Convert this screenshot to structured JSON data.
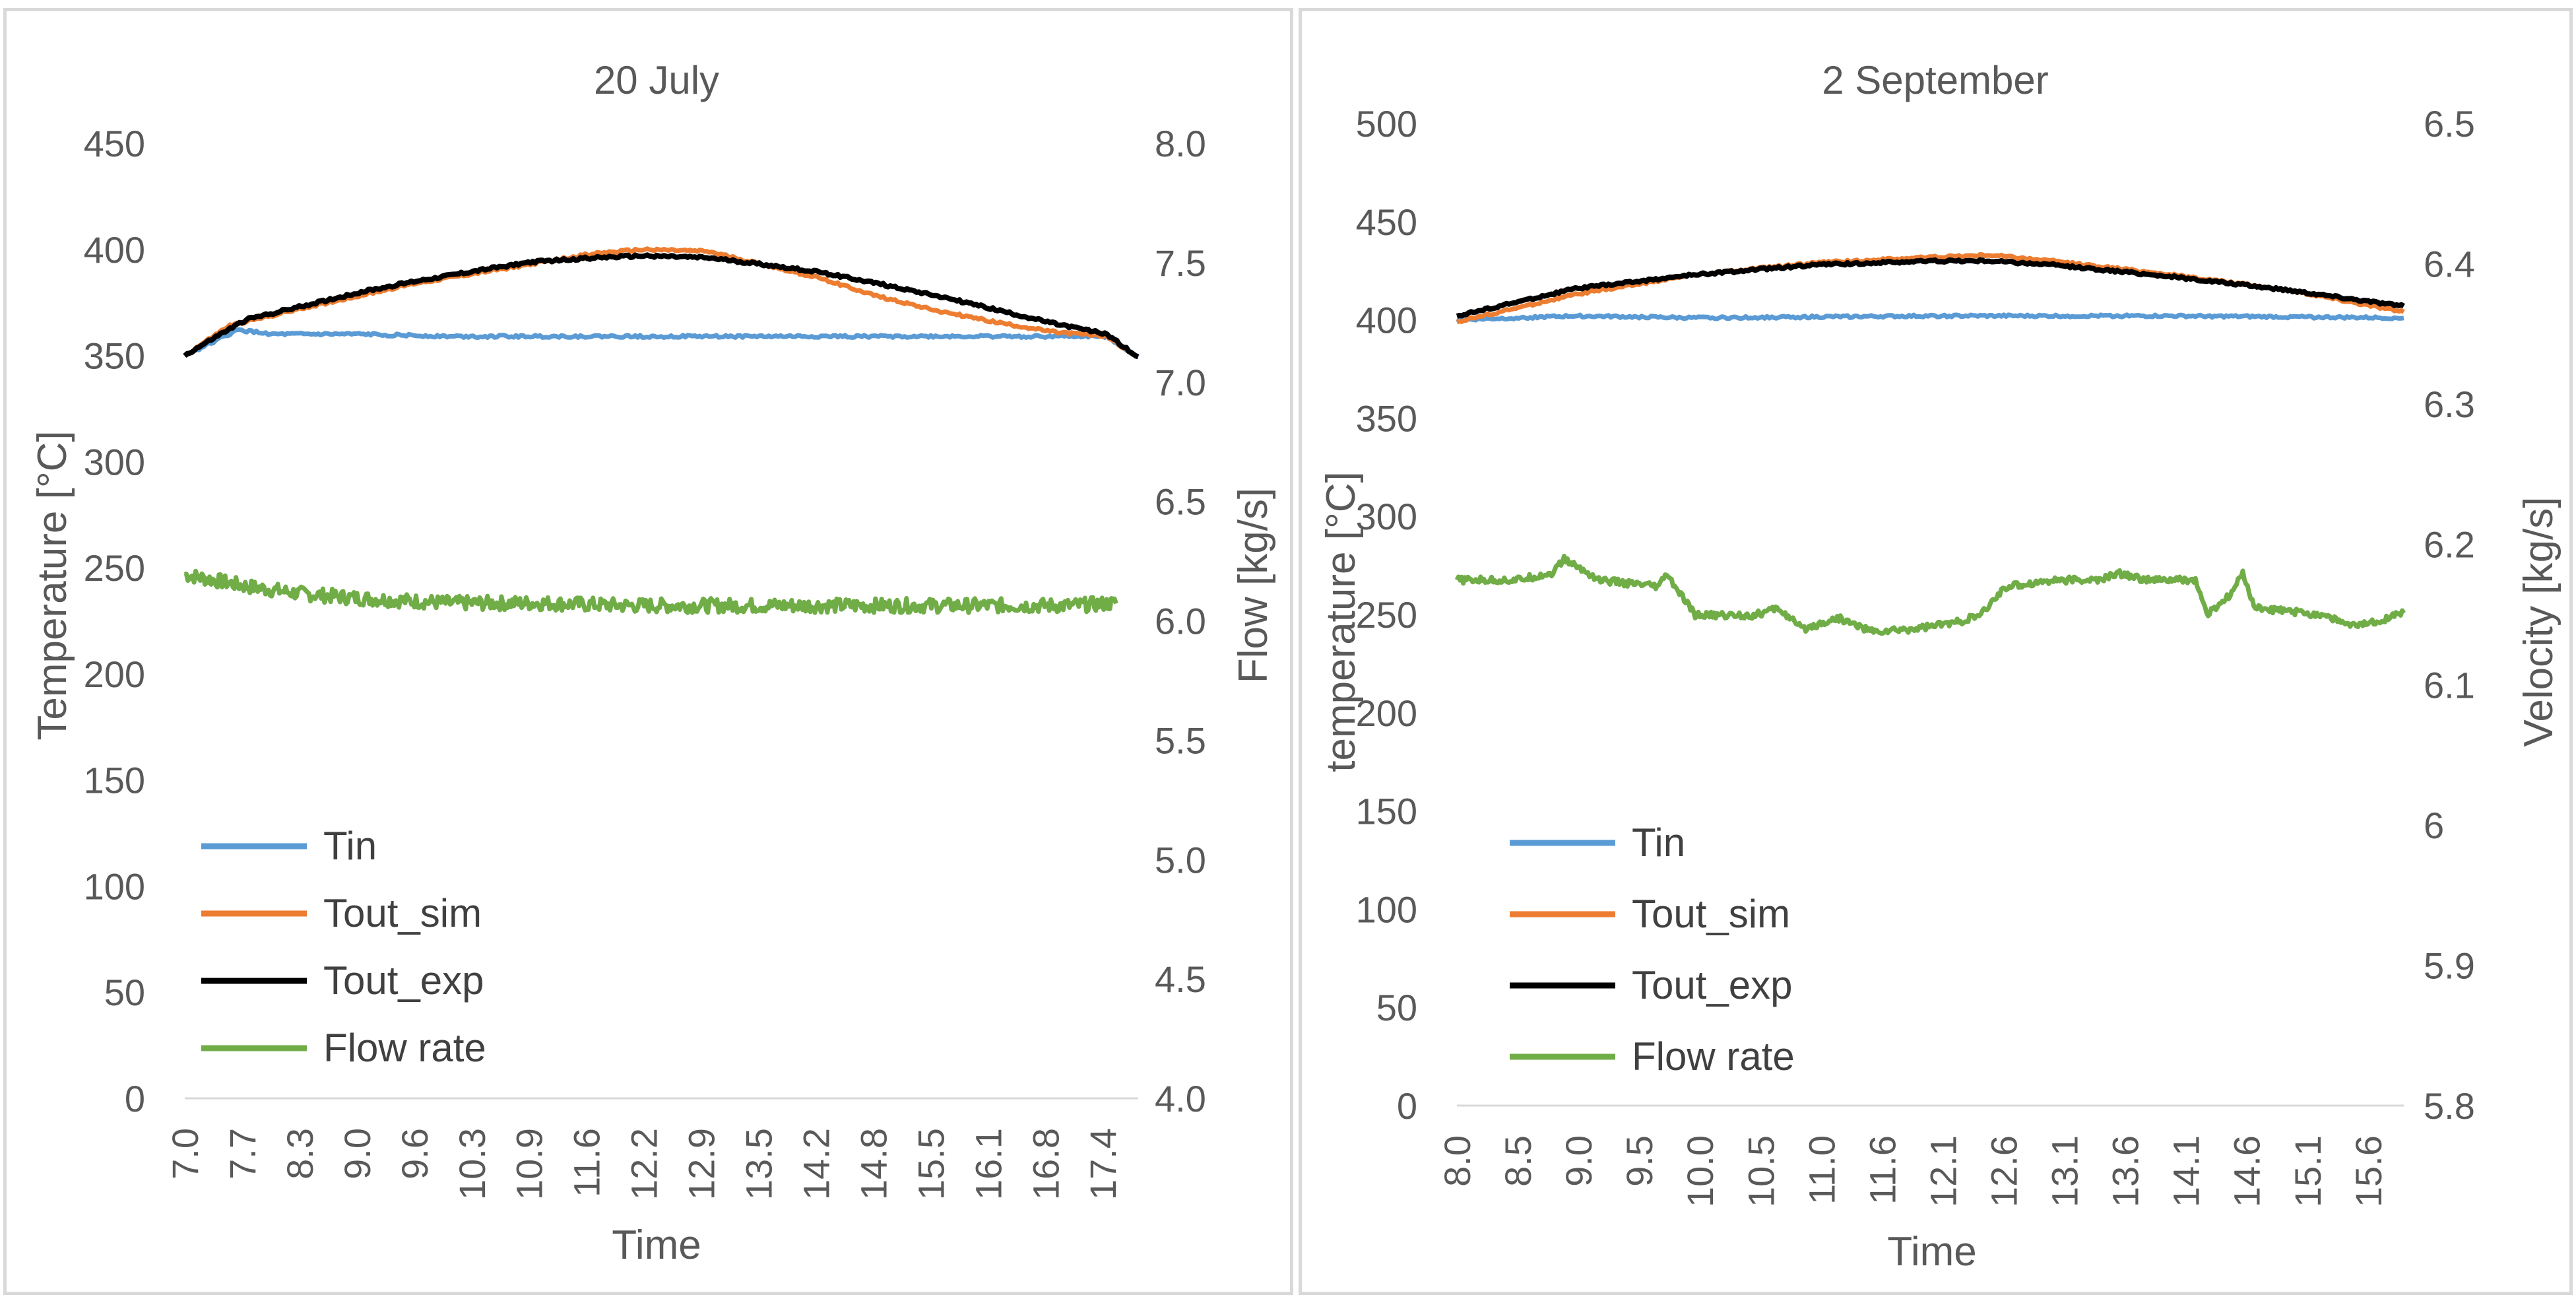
{
  "chart_data": [
    {
      "type": "line",
      "title": "20 July",
      "xlabel": "Time",
      "ylabel": "Temperature [°C]",
      "y2label": "Flow [kg/s]",
      "ylim": [
        0,
        450
      ],
      "y2lim": [
        4.0,
        8.0
      ],
      "yticks": [
        "0",
        "50",
        "100",
        "150",
        "200",
        "250",
        "300",
        "350",
        "400",
        "450"
      ],
      "y2ticks": [
        "4.0",
        "4.5",
        "5.0",
        "5.5",
        "6.0",
        "6.5",
        "7.0",
        "7.5",
        "8.0"
      ],
      "xlim": [
        7.0,
        17.75
      ],
      "xticks": [
        "7.0",
        "7.7",
        "8.3",
        "9.0",
        "9.6",
        "10.3",
        "10.9",
        "11.6",
        "12.2",
        "12.9",
        "13.5",
        "14.2",
        "14.8",
        "15.5",
        "16.1",
        "16.8",
        "17.4"
      ],
      "legend_position": "bottom-left",
      "series": [
        {
          "name": "Tin",
          "color": "#5b9bd5",
          "axis": "left",
          "x": [
            7.0,
            7.6,
            8.0,
            9.0,
            10.0,
            12.0,
            14.0,
            16.0,
            17.4,
            17.75
          ],
          "values": [
            350,
            362,
            360,
            360,
            359,
            359,
            359,
            359,
            359,
            349
          ]
        },
        {
          "name": "Tout_sim",
          "color": "#ed7d31",
          "axis": "left",
          "x": [
            7.0,
            7.5,
            8.3,
            9.6,
            10.9,
            11.6,
            12.2,
            12.9,
            13.5,
            14.2,
            14.8,
            15.5,
            16.1,
            16.8,
            17.4,
            17.75
          ],
          "values": [
            350,
            364,
            372,
            384,
            393,
            398,
            400,
            399,
            393,
            386,
            378,
            371,
            366,
            361,
            359,
            349
          ]
        },
        {
          "name": "Tout_exp",
          "color": "#000000",
          "axis": "left",
          "x": [
            7.0,
            7.4,
            7.7,
            8.3,
            9.0,
            9.6,
            10.3,
            10.9,
            11.6,
            12.2,
            12.9,
            13.5,
            14.2,
            14.8,
            15.5,
            16.1,
            16.8,
            17.4,
            17.75
          ],
          "values": [
            350,
            360,
            367,
            373,
            380,
            385,
            390,
            394,
            396,
            397,
            396,
            393,
            389,
            384,
            378,
            372,
            365,
            360,
            349
          ]
        },
        {
          "name": "Flow rate",
          "color": "#70ad47",
          "axis": "right",
          "x": [
            7.0,
            7.7,
            8.3,
            9.0,
            10.0,
            11.0,
            12.0,
            13.0,
            14.0,
            15.0,
            16.0,
            17.0,
            17.5
          ],
          "values": [
            6.2,
            6.15,
            6.12,
            6.1,
            6.08,
            6.08,
            6.07,
            6.07,
            6.07,
            6.07,
            6.07,
            6.07,
            6.08
          ],
          "noise": 0.06
        }
      ]
    },
    {
      "type": "line",
      "title": "2 September",
      "xlabel": "Time",
      "ylabel": "temperature [°C]",
      "y2label": "Velocity [kg/s]",
      "ylim": [
        0,
        500
      ],
      "y2lim": [
        5.8,
        6.5
      ],
      "yticks": [
        "0",
        "50",
        "100",
        "150",
        "200",
        "250",
        "300",
        "350",
        "400",
        "450",
        "500"
      ],
      "y2ticks": [
        "5.8",
        "5.9",
        "6",
        "6.1",
        "6.2",
        "6.3",
        "6.4",
        "6.5"
      ],
      "xlim": [
        8.0,
        15.95
      ],
      "xticks": [
        "8.0",
        "8.5",
        "9.0",
        "9.5",
        "10.0",
        "10.5",
        "11.0",
        "11.6",
        "12.1",
        "12.6",
        "13.1",
        "13.6",
        "14.1",
        "14.6",
        "15.1",
        "15.6"
      ],
      "legend_position": "bottom-left",
      "series": [
        {
          "name": "Tin",
          "color": "#5b9bd5",
          "axis": "left",
          "x": [
            8.0,
            9.0,
            10.0,
            12.0,
            14.0,
            15.95
          ],
          "values": [
            400,
            402,
            401,
            402,
            402,
            401
          ]
        },
        {
          "name": "Tout_sim",
          "color": "#ed7d31",
          "axis": "left",
          "x": [
            8.0,
            9.0,
            10.0,
            11.0,
            12.0,
            12.5,
            13.0,
            14.0,
            15.0,
            15.95
          ],
          "values": [
            399,
            413,
            423,
            429,
            432,
            433,
            430,
            423,
            415,
            404
          ]
        },
        {
          "name": "Tout_exp",
          "color": "#000000",
          "axis": "left",
          "x": [
            8.0,
            9.0,
            10.0,
            11.0,
            12.0,
            12.5,
            13.0,
            14.0,
            15.0,
            15.95
          ],
          "values": [
            402,
            416,
            423,
            428,
            430,
            430,
            428,
            422,
            415,
            407
          ]
        },
        {
          "name": "Flow rate",
          "color": "#70ad47",
          "axis": "right",
          "x": [
            8.0,
            8.5,
            8.8,
            8.9,
            9.2,
            9.7,
            9.75,
            10.0,
            10.1,
            10.5,
            10.7,
            10.9,
            11.2,
            11.5,
            11.8,
            12.2,
            12.4,
            12.6,
            13.0,
            13.4,
            13.55,
            13.8,
            14.2,
            14.3,
            14.5,
            14.6,
            14.7,
            15.3,
            15.5,
            15.7,
            15.95
          ],
          "values": [
            6.175,
            6.175,
            6.18,
            6.19,
            6.175,
            6.17,
            6.18,
            6.15,
            6.15,
            6.15,
            6.155,
            6.14,
            6.148,
            6.138,
            6.14,
            6.145,
            6.15,
            6.17,
            6.175,
            6.175,
            6.18,
            6.175,
            6.175,
            6.15,
            6.165,
            6.18,
            6.155,
            6.15,
            6.142,
            6.145,
            6.152
          ],
          "noise": 0.006
        }
      ]
    }
  ]
}
